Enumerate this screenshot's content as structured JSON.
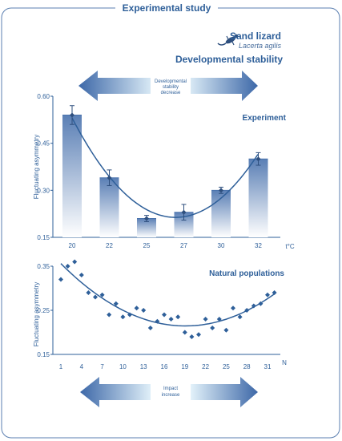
{
  "header": {
    "title": "Experimental study",
    "species_common": "Sand lizard",
    "species_latin": "Lacerta agilis",
    "subtitle": "Developmental stability",
    "lizard_icon": "lizard-icon"
  },
  "top_arrow": {
    "label_line1": "Developmental",
    "label_line2": "stability",
    "label_line3": "decrease"
  },
  "bottom_arrow": {
    "label_line1": "Impact",
    "label_line2": "increase"
  },
  "colors": {
    "primary": "#2e5f99",
    "bar_top": "#4a73ad",
    "arrow_light": "#cfe7f3"
  },
  "chart_data": [
    {
      "type": "bar",
      "title": "Experiment",
      "ylabel": "Fluctuating asymmetry",
      "xunit": "t°C",
      "ylim": [
        0.15,
        0.6
      ],
      "yticks": [
        "0.15",
        "0.30",
        "0.45",
        "0.60"
      ],
      "categories": [
        "20",
        "22",
        "25",
        "27",
        "30",
        "32"
      ],
      "values": [
        0.54,
        0.34,
        0.21,
        0.23,
        0.3,
        0.4
      ],
      "errors": [
        0.03,
        0.025,
        0.01,
        0.025,
        0.01,
        0.02
      ],
      "trend": "quadratic"
    },
    {
      "type": "scatter",
      "title": "Natural populations",
      "ylabel": "Fluctuating asymmetry",
      "xlabel": "N",
      "ylim": [
        0.15,
        0.35
      ],
      "yticks": [
        "0.15",
        "0.25",
        "0.35"
      ],
      "xticks": [
        "1",
        "4",
        "7",
        "10",
        "13",
        "16",
        "19",
        "22",
        "25",
        "28",
        "31"
      ],
      "x": [
        1,
        2,
        3,
        4,
        5,
        6,
        7,
        8,
        9,
        10,
        11,
        12,
        13,
        14,
        15,
        16,
        17,
        18,
        19,
        20,
        21,
        22,
        23,
        24,
        25,
        26,
        27,
        28,
        29,
        30,
        31,
        32
      ],
      "y": [
        0.32,
        0.35,
        0.36,
        0.33,
        0.29,
        0.28,
        0.285,
        0.24,
        0.265,
        0.235,
        0.24,
        0.255,
        0.25,
        0.21,
        0.225,
        0.24,
        0.23,
        0.235,
        0.2,
        0.19,
        0.195,
        0.23,
        0.21,
        0.23,
        0.205,
        0.255,
        0.235,
        0.25,
        0.26,
        0.265,
        0.285,
        0.29
      ],
      "trend": "quadratic"
    }
  ]
}
